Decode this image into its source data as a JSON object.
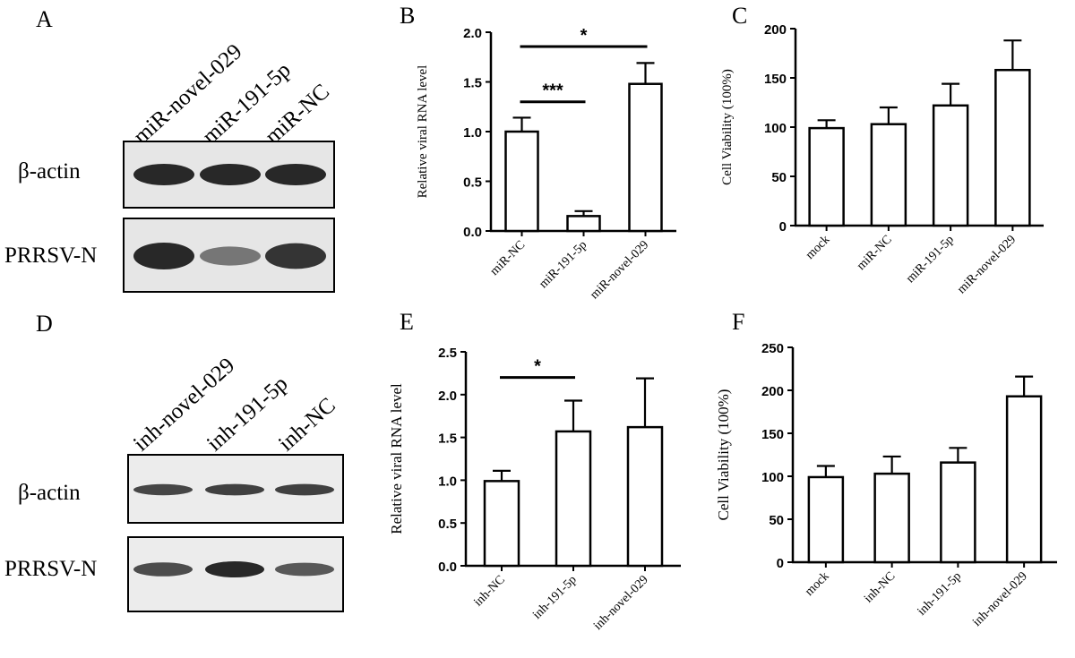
{
  "panels": {
    "A": {
      "letter": "A",
      "lanes": [
        "miR-novel-029",
        "miR-191-5p",
        "miR-NC"
      ],
      "rows": [
        "β-actin",
        "PRRSV-N"
      ],
      "band_intensity": {
        "β-actin": [
          1.0,
          1.0,
          1.0
        ],
        "PRRSV-N": [
          1.0,
          0.35,
          0.9
        ]
      }
    },
    "D": {
      "letter": "D",
      "lanes": [
        "inh-novel-029",
        "inh-191-5p",
        "inh-NC"
      ],
      "rows": [
        "β-actin",
        "PRRSV-N"
      ],
      "band_intensity": {
        "β-actin": [
          0.75,
          0.8,
          0.8
        ],
        "PRRSV-N": [
          0.7,
          1.0,
          0.6
        ]
      }
    }
  },
  "chart_data": [
    {
      "panel": "B",
      "type": "bar",
      "categories": [
        "miR-NC",
        "miR-191-5p",
        "miR-novel-029"
      ],
      "values": [
        1.0,
        0.15,
        1.48
      ],
      "errors": [
        0.14,
        0.05,
        0.21
      ],
      "ylabel": "Relative viral RNA level",
      "ylim": [
        0,
        2.0
      ],
      "yticks": [
        "0.0",
        "0.5",
        "1.0",
        "1.5",
        "2.0"
      ],
      "significance": [
        {
          "from": 0,
          "to": 1,
          "label": "***"
        },
        {
          "from": 0,
          "to": 2,
          "label": "*"
        }
      ]
    },
    {
      "panel": "C",
      "type": "bar",
      "categories": [
        "mock",
        "miR-NC",
        "miR-191-5p",
        "miR-novel-029"
      ],
      "values": [
        99,
        103,
        122,
        158
      ],
      "errors": [
        8,
        17,
        22,
        30
      ],
      "ylabel": "Cell Viability (100%)",
      "ylim": [
        0,
        200
      ],
      "yticks": [
        "0",
        "50",
        "100",
        "150",
        "200"
      ],
      "significance": []
    },
    {
      "panel": "E",
      "type": "bar",
      "categories": [
        "inh-NC",
        "inh-191-5p",
        "inh-novel-029"
      ],
      "values": [
        0.99,
        1.57,
        1.62
      ],
      "errors": [
        0.12,
        0.36,
        0.57
      ],
      "ylabel": "Relative viral RNA level",
      "ylim": [
        0,
        2.5
      ],
      "yticks": [
        "0.0",
        "0.5",
        "1.0",
        "1.5",
        "2.0",
        "2.5"
      ],
      "significance": [
        {
          "from": 0,
          "to": 1,
          "label": "*"
        }
      ]
    },
    {
      "panel": "F",
      "type": "bar",
      "categories": [
        "mock",
        "inh-NC",
        "inh-191-5p",
        "inh-novel-029"
      ],
      "values": [
        99,
        103,
        116,
        193
      ],
      "errors": [
        13,
        20,
        17,
        23
      ],
      "ylabel": "Cell Viability (100%)",
      "ylim": [
        0,
        250
      ],
      "yticks": [
        "0",
        "50",
        "100",
        "150",
        "200",
        "250"
      ],
      "significance": []
    }
  ]
}
